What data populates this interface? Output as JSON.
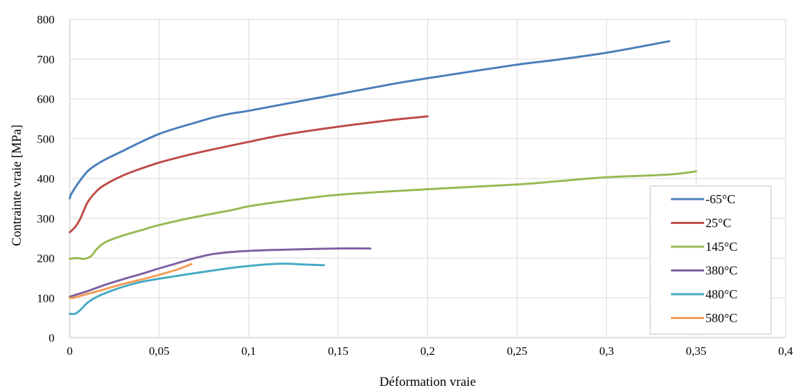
{
  "chart_data": {
    "type": "line",
    "title": "",
    "xlabel": "Déformation vraie",
    "ylabel": "Contrainte vraie [MPa]",
    "xlim": [
      0,
      0.4
    ],
    "ylim": [
      0,
      800
    ],
    "x_ticks": [
      "0",
      "0,05",
      "0,1",
      "0,15",
      "0,2",
      "0,25",
      "0,3",
      "0,35",
      "0,4"
    ],
    "y_ticks": [
      "0",
      "100",
      "200",
      "300",
      "400",
      "500",
      "600",
      "700",
      "800"
    ],
    "grid": true,
    "legend_position": "right",
    "series": [
      {
        "name": "-65°C",
        "color": "#4a7ebb",
        "points": [
          [
            0,
            350
          ],
          [
            0.001,
            362
          ],
          [
            0.005,
            390
          ],
          [
            0.01,
            418
          ],
          [
            0.015,
            435
          ],
          [
            0.02,
            448
          ],
          [
            0.03,
            470
          ],
          [
            0.04,
            492
          ],
          [
            0.05,
            512
          ],
          [
            0.06,
            527
          ],
          [
            0.07,
            540
          ],
          [
            0.08,
            553
          ],
          [
            0.09,
            563
          ],
          [
            0.1,
            570
          ],
          [
            0.12,
            587
          ],
          [
            0.15,
            612
          ],
          [
            0.18,
            637
          ],
          [
            0.2,
            652
          ],
          [
            0.25,
            686
          ],
          [
            0.27,
            697
          ],
          [
            0.3,
            716
          ],
          [
            0.335,
            745
          ]
        ]
      },
      {
        "name": "25°C",
        "color": "#be4b48",
        "points": [
          [
            0,
            265
          ],
          [
            0.003,
            278
          ],
          [
            0.006,
            300
          ],
          [
            0.01,
            340
          ],
          [
            0.015,
            368
          ],
          [
            0.02,
            385
          ],
          [
            0.03,
            408
          ],
          [
            0.04,
            425
          ],
          [
            0.05,
            440
          ],
          [
            0.06,
            452
          ],
          [
            0.07,
            463
          ],
          [
            0.08,
            473
          ],
          [
            0.1,
            492
          ],
          [
            0.12,
            510
          ],
          [
            0.15,
            530
          ],
          [
            0.18,
            547
          ],
          [
            0.2,
            556
          ]
        ]
      },
      {
        "name": "145°C",
        "color": "#98b954",
        "points": [
          [
            0,
            198
          ],
          [
            0.004,
            200
          ],
          [
            0.008,
            198
          ],
          [
            0.012,
            205
          ],
          [
            0.015,
            222
          ],
          [
            0.02,
            240
          ],
          [
            0.03,
            257
          ],
          [
            0.04,
            270
          ],
          [
            0.05,
            283
          ],
          [
            0.07,
            303
          ],
          [
            0.09,
            320
          ],
          [
            0.1,
            330
          ],
          [
            0.12,
            343
          ],
          [
            0.15,
            359
          ],
          [
            0.2,
            373
          ],
          [
            0.25,
            385
          ],
          [
            0.27,
            392
          ],
          [
            0.3,
            403
          ],
          [
            0.335,
            410
          ],
          [
            0.35,
            418
          ]
        ]
      },
      {
        "name": "380°C",
        "color": "#7d60a0",
        "points": [
          [
            0,
            103
          ],
          [
            0.01,
            117
          ],
          [
            0.02,
            133
          ],
          [
            0.03,
            147
          ],
          [
            0.04,
            160
          ],
          [
            0.05,
            174
          ],
          [
            0.06,
            187
          ],
          [
            0.07,
            200
          ],
          [
            0.08,
            210
          ],
          [
            0.09,
            215
          ],
          [
            0.1,
            218
          ],
          [
            0.12,
            221
          ],
          [
            0.15,
            224
          ],
          [
            0.168,
            224
          ]
        ]
      },
      {
        "name": "480°C",
        "color": "#46aac5",
        "points": [
          [
            0,
            60
          ],
          [
            0.003,
            60
          ],
          [
            0.006,
            70
          ],
          [
            0.01,
            88
          ],
          [
            0.015,
            102
          ],
          [
            0.02,
            112
          ],
          [
            0.03,
            128
          ],
          [
            0.04,
            140
          ],
          [
            0.05,
            148
          ],
          [
            0.07,
            162
          ],
          [
            0.09,
            175
          ],
          [
            0.1,
            180
          ],
          [
            0.11,
            184
          ],
          [
            0.12,
            186
          ],
          [
            0.13,
            184
          ],
          [
            0.142,
            182
          ]
        ]
      },
      {
        "name": "580°C",
        "color": "#f59d56",
        "points": [
          [
            0,
            100
          ],
          [
            0.002,
            100
          ],
          [
            0.01,
            110
          ],
          [
            0.02,
            122
          ],
          [
            0.03,
            135
          ],
          [
            0.04,
            146
          ],
          [
            0.05,
            158
          ],
          [
            0.06,
            171
          ],
          [
            0.068,
            185
          ]
        ]
      }
    ]
  }
}
